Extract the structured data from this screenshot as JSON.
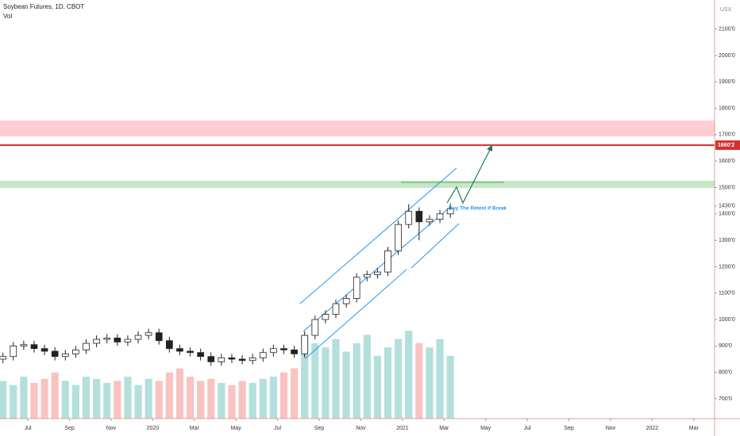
{
  "chart_data": {
    "type": "candlestick",
    "title": "Soybean Futures, 1D, CBOT",
    "volume_label": "Vol",
    "currency": "USX",
    "annotation": "Buy The Retest if Break",
    "x": [
      -0.2,
      0.3,
      0.8,
      1.3,
      1.8,
      2.3,
      2.8,
      3.3,
      3.8,
      4.3,
      4.8,
      5.3,
      5.8,
      6.3,
      6.8,
      7.3,
      7.8,
      8.3,
      8.8,
      9.3,
      9.8,
      10.3,
      10.8,
      11.3,
      11.8,
      12.3,
      12.8,
      13.3,
      13.8,
      14.3,
      14.8,
      15.3,
      15.8,
      16.3,
      16.8,
      17.3,
      17.8,
      18.3,
      18.8,
      19.3,
      19.8,
      20.3,
      20.8,
      21.3
    ],
    "open": [
      850,
      860,
      900,
      905,
      890,
      880,
      860,
      870,
      885,
      910,
      925,
      930,
      915,
      925,
      940,
      950,
      920,
      890,
      880,
      875,
      860,
      840,
      855,
      850,
      845,
      855,
      875,
      890,
      885,
      870,
      940,
      1000,
      1020,
      1060,
      1080,
      1160,
      1170,
      1180,
      1260,
      1360,
      1410,
      1370,
      1380,
      1400
    ],
    "high": [
      875,
      915,
      920,
      920,
      905,
      895,
      885,
      900,
      925,
      940,
      945,
      945,
      940,
      955,
      965,
      965,
      935,
      905,
      895,
      890,
      875,
      870,
      870,
      865,
      870,
      890,
      905,
      905,
      900,
      955,
      1015,
      1035,
      1075,
      1095,
      1175,
      1185,
      1195,
      1275,
      1375,
      1437,
      1425,
      1395,
      1415,
      1440
    ],
    "low": [
      835,
      845,
      885,
      875,
      865,
      845,
      845,
      855,
      870,
      895,
      910,
      900,
      900,
      910,
      925,
      905,
      875,
      865,
      860,
      845,
      825,
      825,
      835,
      830,
      830,
      840,
      860,
      870,
      855,
      855,
      925,
      985,
      1005,
      1045,
      1065,
      1145,
      1155,
      1165,
      1245,
      1345,
      1300,
      1355,
      1365,
      1385
    ],
    "close": [
      860,
      900,
      905,
      890,
      880,
      860,
      870,
      885,
      910,
      925,
      930,
      915,
      925,
      940,
      950,
      920,
      890,
      880,
      875,
      860,
      840,
      855,
      850,
      845,
      855,
      875,
      890,
      885,
      870,
      940,
      1000,
      1020,
      1060,
      1080,
      1160,
      1170,
      1180,
      1260,
      1360,
      1410,
      1370,
      1380,
      1400,
      1420
    ],
    "volume": [
      90000,
      80000,
      100000,
      85000,
      95000,
      110000,
      90000,
      80000,
      100000,
      95000,
      85000,
      90000,
      100000,
      80000,
      95000,
      90000,
      110000,
      120000,
      100000,
      90000,
      95000,
      85000,
      80000,
      90000,
      85000,
      95000,
      100000,
      110000,
      120000,
      200000,
      180000,
      170000,
      190000,
      160000,
      180000,
      200000,
      150000,
      170000,
      190000,
      210000,
      180000,
      170000,
      190000,
      150000
    ],
    "up_color": "#26a69a",
    "down_color": "#ef5350",
    "candle_color": "#222222",
    "xlim": [
      -0.34,
      34.0
    ],
    "xticks": [
      {
        "value": 1,
        "label": "Jul"
      },
      {
        "value": 3,
        "label": "Sep"
      },
      {
        "value": 5,
        "label": "Nov"
      },
      {
        "value": 7,
        "label": "2020"
      },
      {
        "value": 9,
        "label": "Mar"
      },
      {
        "value": 11,
        "label": "May"
      },
      {
        "value": 13,
        "label": "Jul"
      },
      {
        "value": 15,
        "label": "Sep"
      },
      {
        "value": 17,
        "label": "Nov"
      },
      {
        "value": 19,
        "label": "2021"
      },
      {
        "value": 21,
        "label": "Mar"
      },
      {
        "value": 23,
        "label": "May"
      },
      {
        "value": 25,
        "label": "Jul"
      },
      {
        "value": 27,
        "label": "Sep"
      },
      {
        "value": 29,
        "label": "Nov"
      },
      {
        "value": 31,
        "label": "2022"
      },
      {
        "value": 33,
        "label": "Mar"
      }
    ],
    "ylim": [
      625,
      2210
    ],
    "yticks": [
      {
        "value": 2100,
        "label": "2100'0"
      },
      {
        "value": 2000,
        "label": "2000'0"
      },
      {
        "value": 1900,
        "label": "1900'0"
      },
      {
        "value": 1800,
        "label": "1800'0"
      },
      {
        "value": 1700,
        "label": "1700'0"
      },
      {
        "value": 1600,
        "label": "1600'0"
      },
      {
        "value": 1500,
        "label": "1500'0"
      },
      {
        "value": 1430,
        "label": "1430'0"
      },
      {
        "value": 1400,
        "label": "1400'0"
      },
      {
        "value": 1300,
        "label": "1300'0"
      },
      {
        "value": 1200,
        "label": "1200'0"
      },
      {
        "value": 1100,
        "label": "1100'0"
      },
      {
        "value": 1000,
        "label": "1000'0"
      },
      {
        "value": 900,
        "label": "900'0"
      },
      {
        "value": 800,
        "label": "800'0"
      },
      {
        "value": 700,
        "label": "700'0"
      }
    ],
    "y2lim": [
      0,
      1000000
    ],
    "price_line": {
      "value": 1660.25,
      "label": "1660'2"
    }
  }
}
